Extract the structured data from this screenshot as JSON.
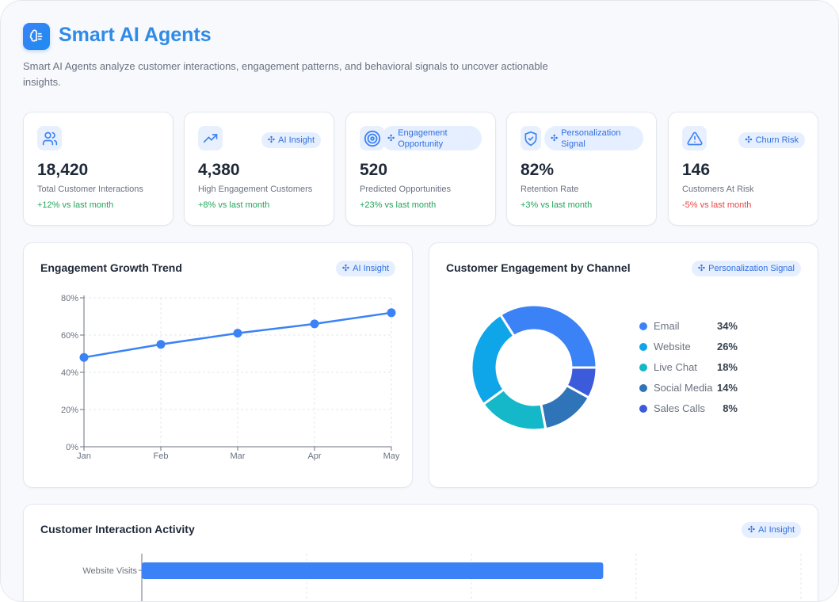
{
  "header": {
    "title": "Smart AI Agents",
    "description": "Smart AI Agents analyze customer interactions, engagement patterns, and behavioral signals to uncover actionable insights.",
    "logo_icon": "brain-icon"
  },
  "colors": {
    "accent": "#3b82f6",
    "positive": "#22a55a",
    "negative": "#ef4444",
    "badge_bg": "#e6efff"
  },
  "stats": [
    {
      "icon": "users-icon",
      "badge": "",
      "value": "18,420",
      "label": "Total Customer Interactions",
      "change": "+12% vs last month"
    },
    {
      "icon": "trending-up-icon",
      "badge": "AI Insight",
      "value": "4,380",
      "label": "High Engagement Customers",
      "change": "+8% vs last month"
    },
    {
      "icon": "target-icon",
      "badge": "Engagement Opportunity",
      "value": "520",
      "label": "Predicted Opportunities",
      "change": "+23% vs last month"
    },
    {
      "icon": "shield-check-icon",
      "badge": "Personalization Signal",
      "value": "82%",
      "label": "Retention Rate",
      "change": "+3% vs last month"
    },
    {
      "icon": "alert-triangle-icon",
      "badge": "Churn Risk",
      "value": "146",
      "label": "Customers At Risk",
      "change": "-5% vs last month"
    }
  ],
  "trend": {
    "title": "Engagement Growth Trend",
    "badge": "AI Insight"
  },
  "channel": {
    "title": "Customer Engagement by Channel",
    "badge": "Personalization Signal"
  },
  "activity": {
    "title": "Customer Interaction Activity",
    "badge": "AI Insight"
  },
  "chart_data": [
    {
      "type": "line",
      "categories": [
        "Jan",
        "Feb",
        "Mar",
        "Apr",
        "May"
      ],
      "values": [
        48,
        55,
        61,
        66,
        72
      ],
      "ylim": [
        0,
        80
      ],
      "yticks": [
        "0%",
        "20%",
        "40%",
        "60%",
        "80%"
      ],
      "grid": true,
      "color": "#3b82f6"
    },
    {
      "type": "pie",
      "donut": true,
      "categories": [
        "Email",
        "Website",
        "Live Chat",
        "Social Media",
        "Sales Calls"
      ],
      "values": [
        34,
        26,
        18,
        14,
        8
      ],
      "labels": [
        "34%",
        "26%",
        "18%",
        "14%",
        "8%"
      ],
      "colors": [
        "#3b82f6",
        "#0ea5e9",
        "#14b8c8",
        "#2f74b8",
        "#3b5bdb"
      ],
      "legend": "right"
    },
    {
      "type": "bar",
      "orientation": "horizontal",
      "categories": [
        "Website Visits"
      ],
      "values": [
        0.7
      ],
      "grid": true,
      "color": "#3b82f6"
    }
  ]
}
